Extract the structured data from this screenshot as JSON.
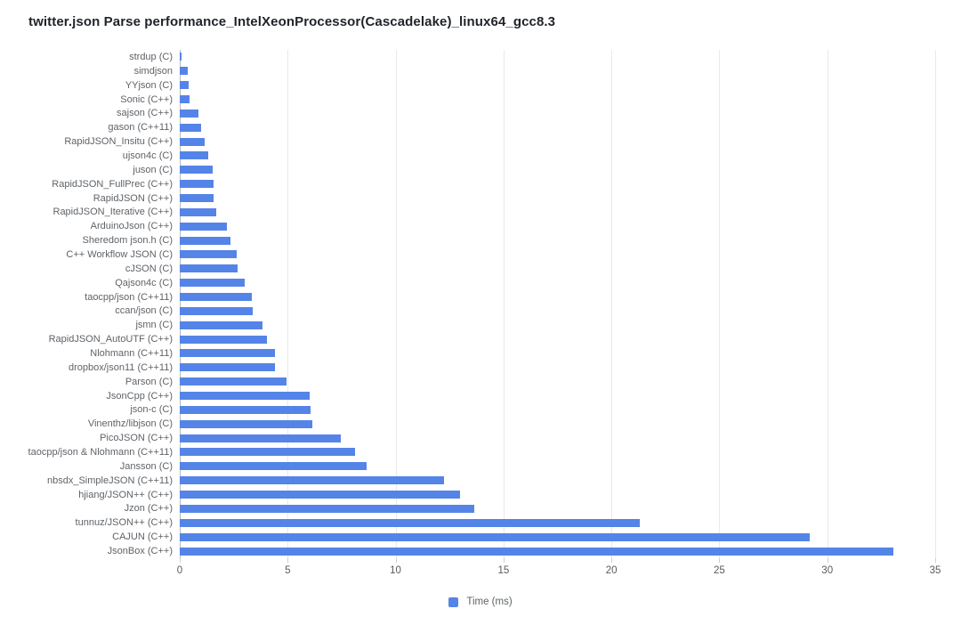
{
  "title": "twitter.json Parse performance_IntelXeonProcessor(Cascadelake)_linux64_gcc8.3",
  "legend": {
    "label": "Time (ms)",
    "color": "#5584e8"
  },
  "colors": {
    "bar": "#5584e8",
    "gridline": "#e9e9e9",
    "zero_axis": "#b9b9b9",
    "label_text": "#5f6368",
    "title_text": "#1f2329"
  },
  "chart_data": {
    "type": "bar",
    "orientation": "horizontal",
    "title": "twitter.json Parse performance_IntelXeonProcessor(Cascadelake)_linux64_gcc8.3",
    "xlabel": "",
    "ylabel": "",
    "xlim": [
      0,
      35
    ],
    "x_ticks": [
      0,
      5,
      10,
      15,
      20,
      25,
      30,
      35
    ],
    "grid": true,
    "legend_position": "bottom-center",
    "legend_entries": [
      "Time (ms)"
    ],
    "categories": [
      "strdup (C)",
      "simdjson",
      "YYjson (C)",
      "Sonic (C++)",
      "sajson (C++)",
      "gason (C++11)",
      "RapidJSON_Insitu (C++)",
      "ujson4c (C)",
      "juson (C)",
      "RapidJSON_FullPrec (C++)",
      "RapidJSON (C++)",
      "RapidJSON_Iterative (C++)",
      "ArduinoJson (C++)",
      "Sheredom json.h (C)",
      "C++ Workflow JSON (C)",
      "cJSON (C)",
      "Qajson4c (C)",
      "taocpp/json (C++11)",
      "ccan/json (C)",
      "jsmn (C)",
      "RapidJSON_AutoUTF (C++)",
      "Nlohmann (C++11)",
      "dropbox/json11 (C++11)",
      "Parson (C)",
      "JsonCpp (C++)",
      "json-c (C)",
      "Vinenthz/libjson (C)",
      "PicoJSON (C++)",
      "taocpp/json & Nlohmann (C++11)",
      "Jansson (C)",
      "nbsdx_SimpleJSON (C++11)",
      "hjiang/JSON++ (C++)",
      "Jzon (C++)",
      "tunnuz/JSON++ (C++)",
      "CAJUN (C++)",
      "JsonBox (C++)"
    ],
    "series": [
      {
        "name": "Time (ms)",
        "values": [
          0.07,
          0.38,
          0.42,
          0.46,
          0.87,
          1.0,
          1.17,
          1.32,
          1.52,
          1.55,
          1.56,
          1.7,
          2.18,
          2.33,
          2.63,
          2.66,
          3.03,
          3.35,
          3.38,
          3.82,
          4.03,
          4.4,
          4.43,
          4.96,
          6.0,
          6.07,
          6.15,
          7.45,
          8.11,
          8.66,
          12.23,
          13.0,
          13.63,
          21.3,
          29.2,
          33.05
        ]
      }
    ]
  }
}
